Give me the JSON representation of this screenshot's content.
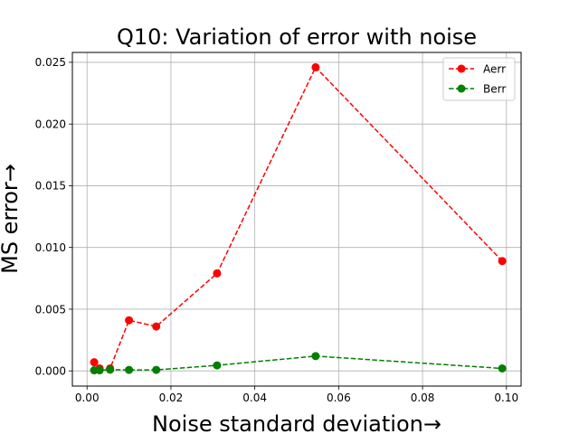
{
  "chart_data": {
    "type": "line",
    "title": "Q10: Variation of error with noise",
    "xlabel": "Noise standard deviation→",
    "ylabel": "MS error→",
    "xlim": [
      -0.0035,
      0.1035
    ],
    "ylim": [
      -0.00123,
      0.0258
    ],
    "xticks": [
      0.0,
      0.02,
      0.04,
      0.06,
      0.08,
      0.1
    ],
    "xtick_labels": [
      "0.00",
      "0.02",
      "0.04",
      "0.06",
      "0.08",
      "0.10"
    ],
    "yticks": [
      0.0,
      0.005,
      0.01,
      0.015,
      0.02,
      0.025
    ],
    "ytick_labels": [
      "0.000",
      "0.005",
      "0.010",
      "0.015",
      "0.020",
      "0.025"
    ],
    "grid": true,
    "legend_position": "top-right",
    "series": [
      {
        "name": "Aerr",
        "color": "#ff0000",
        "line_style": "dashed",
        "marker": "circle",
        "points": [
          {
            "x": 0.0017,
            "y": 0.0007
          },
          {
            "x": 0.003,
            "y": 0.0002
          },
          {
            "x": 0.0055,
            "y": 0.0002
          },
          {
            "x": 0.01,
            "y": 0.0041
          },
          {
            "x": 0.0165,
            "y": 0.0036
          },
          {
            "x": 0.031,
            "y": 0.0079
          },
          {
            "x": 0.0545,
            "y": 0.0246
          },
          {
            "x": 0.099,
            "y": 0.0089
          }
        ]
      },
      {
        "name": "Berr",
        "color": "#008000",
        "line_style": "dashed",
        "marker": "circle",
        "points": [
          {
            "x": 0.0017,
            "y": 5e-05
          },
          {
            "x": 0.003,
            "y": 5e-05
          },
          {
            "x": 0.0055,
            "y": 0.0001
          },
          {
            "x": 0.01,
            "y": 8e-05
          },
          {
            "x": 0.0165,
            "y": 8e-05
          },
          {
            "x": 0.031,
            "y": 0.00045
          },
          {
            "x": 0.0545,
            "y": 0.0012
          },
          {
            "x": 0.099,
            "y": 0.0002
          }
        ]
      }
    ]
  }
}
